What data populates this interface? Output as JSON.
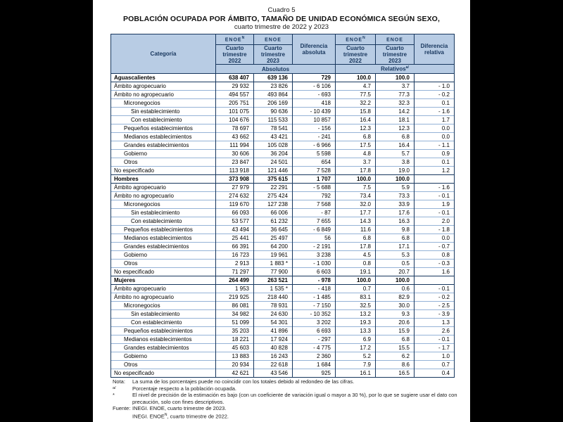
{
  "colors": {
    "frame_bg": "#000000",
    "page_bg": "#ffffff",
    "header_bg": "#b8cce4",
    "header_text": "#17365d",
    "border_dark": "#17375e",
    "row_line": "#95b3d7"
  },
  "page": {
    "cuadro": "Cuadro 5",
    "title": "POBLACIÓN OCUPADA POR ÁMBITO, TAMAÑO DE UNIDAD ECONÓMICA SEGÚN SEXO,",
    "subtitle": "cuarto trimestre de 2022 y 2023"
  },
  "table": {
    "header": {
      "category": "Categoría",
      "surveys": [
        {
          "name": "ENOE",
          "sup": "N"
        },
        {
          "name": "ENOE",
          "sup": ""
        },
        {
          "name": "ENOE",
          "sup": "N"
        },
        {
          "name": "ENOE",
          "sup": ""
        }
      ],
      "periods": [
        "Cuarto\ntrimestre\n2022",
        "Cuarto\ntrimestre\n2023",
        "Cuarto\ntrimestre\n2022",
        "Cuarto\ntrimestre\n2023"
      ],
      "dif_absoluta": "Diferencia\nabsoluta",
      "dif_relativa": "Diferencia\nrelativa",
      "absolutos": "Absolutos",
      "relativos": "Relativos",
      "relativos_sup": "a/"
    },
    "sections": [
      {
        "rows": [
          {
            "label": "Aguascalientes",
            "indent": 0,
            "bold": true,
            "v": [
              "638 407",
              "639 136",
              "729",
              "100.0",
              "100.0",
              ""
            ]
          },
          {
            "label": "Ámbito agropecuario",
            "indent": 0,
            "bold": false,
            "v": [
              "29 932",
              "23 826",
              "- 6 106",
              "4.7",
              "3.7",
              "- 1.0"
            ]
          },
          {
            "label": "Ámbito no agropecuario",
            "indent": 0,
            "bold": false,
            "v": [
              "494 557",
              "493 864",
              "- 693",
              "77.5",
              "77.3",
              "- 0.2"
            ]
          },
          {
            "label": "Micronegocios",
            "indent": 1,
            "bold": false,
            "v": [
              "205 751",
              "206 169",
              "418",
              "32.2",
              "32.3",
              "0.1"
            ]
          },
          {
            "label": "Sin establecimiento",
            "indent": 2,
            "bold": false,
            "v": [
              "101 075",
              "90 636",
              "- 10 439",
              "15.8",
              "14.2",
              "- 1.6"
            ]
          },
          {
            "label": "Con establecimiento",
            "indent": 2,
            "bold": false,
            "v": [
              "104 676",
              "115 533",
              "10 857",
              "16.4",
              "18.1",
              "1.7"
            ]
          },
          {
            "label": "Pequeños establecimientos",
            "indent": 1,
            "bold": false,
            "v": [
              "78 697",
              "78 541",
              "- 156",
              "12.3",
              "12.3",
              "0.0"
            ]
          },
          {
            "label": "Medianos establecimientos",
            "indent": 1,
            "bold": false,
            "v": [
              "43 662",
              "43 421",
              "- 241",
              "6.8",
              "6.8",
              "0.0"
            ]
          },
          {
            "label": "Grandes establecimientos",
            "indent": 1,
            "bold": false,
            "v": [
              "111 994",
              "105 028",
              "- 6 966",
              "17.5",
              "16.4",
              "- 1.1"
            ]
          },
          {
            "label": "Gobierno",
            "indent": 1,
            "bold": false,
            "v": [
              "30 606",
              "36 204",
              "5 598",
              "4.8",
              "5.7",
              "0.9"
            ]
          },
          {
            "label": "Otros",
            "indent": 1,
            "bold": false,
            "v": [
              "23 847",
              "24 501",
              "654",
              "3.7",
              "3.8",
              "0.1"
            ]
          },
          {
            "label": "No especificado",
            "indent": 0,
            "bold": false,
            "v": [
              "113 918",
              "121 446",
              "7 528",
              "17.8",
              "19.0",
              "1.2"
            ]
          }
        ]
      },
      {
        "rows": [
          {
            "label": "Hombres",
            "indent": 0,
            "bold": true,
            "v": [
              "373 908",
              "375 615",
              "1 707",
              "100.0",
              "100.0",
              ""
            ]
          },
          {
            "label": "Ámbito agropecuario",
            "indent": 0,
            "bold": false,
            "v": [
              "27 979",
              "22 291",
              "- 5 688",
              "7.5",
              "5.9",
              "- 1.6"
            ]
          },
          {
            "label": "Ámbito no agropecuario",
            "indent": 0,
            "bold": false,
            "v": [
              "274 632",
              "275 424",
              "792",
              "73.4",
              "73.3",
              "- 0.1"
            ]
          },
          {
            "label": "Micronegocios",
            "indent": 1,
            "bold": false,
            "v": [
              "119 670",
              "127 238",
              "7 568",
              "32.0",
              "33.9",
              "1.9"
            ]
          },
          {
            "label": "Sin establecimiento",
            "indent": 2,
            "bold": false,
            "v": [
              "66 093",
              "66 006",
              "- 87",
              "17.7",
              "17.6",
              "- 0.1"
            ]
          },
          {
            "label": "Con establecimiento",
            "indent": 2,
            "bold": false,
            "v": [
              "53 577",
              "61 232",
              "7 655",
              "14.3",
              "16.3",
              "2.0"
            ]
          },
          {
            "label": "Pequeños establecimientos",
            "indent": 1,
            "bold": false,
            "v": [
              "43 494",
              "36 645",
              "- 6 849",
              "11.6",
              "9.8",
              "- 1.8"
            ]
          },
          {
            "label": "Medianos establecimientos",
            "indent": 1,
            "bold": false,
            "v": [
              "25 441",
              "25 497",
              "56",
              "6.8",
              "6.8",
              "0.0"
            ]
          },
          {
            "label": "Grandes establecimientos",
            "indent": 1,
            "bold": false,
            "v": [
              "66 391",
              "64 200",
              "- 2 191",
              "17.8",
              "17.1",
              "- 0.7"
            ]
          },
          {
            "label": "Gobierno",
            "indent": 1,
            "bold": false,
            "v": [
              "16 723",
              "19 961",
              "3 238",
              "4.5",
              "5.3",
              "0.8"
            ]
          },
          {
            "label": "Otros",
            "indent": 1,
            "bold": false,
            "v": [
              "2 913",
              "1 883 *",
              "- 1 030",
              "0.8",
              "0.5",
              "- 0.3"
            ]
          },
          {
            "label": "No especificado",
            "indent": 0,
            "bold": false,
            "v": [
              "71 297",
              "77 900",
              "6 603",
              "19.1",
              "20.7",
              "1.6"
            ]
          }
        ]
      },
      {
        "rows": [
          {
            "label": "Mujeres",
            "indent": 0,
            "bold": true,
            "v": [
              "264 499",
              "263 521",
              "- 978",
              "100.0",
              "100.0",
              ""
            ]
          },
          {
            "label": "Ámbito agropecuario",
            "indent": 0,
            "bold": false,
            "v": [
              "1 953",
              "1 535 *",
              "- 418",
              "0.7",
              "0.6",
              "- 0.1"
            ]
          },
          {
            "label": "Ámbito no agropecuario",
            "indent": 0,
            "bold": false,
            "v": [
              "219 925",
              "218 440",
              "- 1 485",
              "83.1",
              "82.9",
              "- 0.2"
            ]
          },
          {
            "label": "Micronegocios",
            "indent": 1,
            "bold": false,
            "v": [
              "86 081",
              "78 931",
              "- 7 150",
              "32.5",
              "30.0",
              "- 2.5"
            ]
          },
          {
            "label": "Sin establecimiento",
            "indent": 2,
            "bold": false,
            "v": [
              "34 982",
              "24 630",
              "- 10 352",
              "13.2",
              "9.3",
              "- 3.9"
            ]
          },
          {
            "label": "Con establecimiento",
            "indent": 2,
            "bold": false,
            "v": [
              "51 099",
              "54 301",
              "3 202",
              "19.3",
              "20.6",
              "1.3"
            ]
          },
          {
            "label": "Pequeños establecimientos",
            "indent": 1,
            "bold": false,
            "v": [
              "35 203",
              "41 896",
              "6 693",
              "13.3",
              "15.9",
              "2.6"
            ]
          },
          {
            "label": "Medianos establecimientos",
            "indent": 1,
            "bold": false,
            "v": [
              "18 221",
              "17 924",
              "- 297",
              "6.9",
              "6.8",
              "- 0.1"
            ]
          },
          {
            "label": "Grandes establecimientos",
            "indent": 1,
            "bold": false,
            "v": [
              "45 603",
              "40 828",
              "- 4 775",
              "17.2",
              "15.5",
              "- 1.7"
            ]
          },
          {
            "label": "Gobierno",
            "indent": 1,
            "bold": false,
            "v": [
              "13 883",
              "16 243",
              "2 360",
              "5.2",
              "6.2",
              "1.0"
            ]
          },
          {
            "label": "Otros",
            "indent": 1,
            "bold": false,
            "v": [
              "20 934",
              "22 618",
              "1 684",
              "7.9",
              "8.6",
              "0.7"
            ]
          },
          {
            "label": "No especificado",
            "indent": 0,
            "bold": false,
            "v": [
              "42 621",
              "43 546",
              "925",
              "16.1",
              "16.5",
              "0.4"
            ]
          }
        ]
      }
    ]
  },
  "notes": {
    "nota_label": "Nota:",
    "nota_text": "La suma de los porcentajes puede no coincidir con los totales debido al redondeo de las cifras.",
    "marker_a": "a/",
    "marker_a_text": "Porcentaje respecto a la población ocupada.",
    "marker_star": "*",
    "marker_star_text": "El nivel de precisión de la estimación es bajo (con un coeficiente de variación igual o mayor a 30 %), por lo que se sugiere usar el dato con precaución, solo con fines descriptivos.",
    "fuente_label": "Fuente:",
    "fuente_line1": "INEGI. ENOE, cuarto trimestre de 2023.",
    "fuente_line2_pre": "INEGI. ENOE",
    "fuente_line2_sup": "N",
    "fuente_line2_post": ", cuarto trimestre de 2022."
  }
}
